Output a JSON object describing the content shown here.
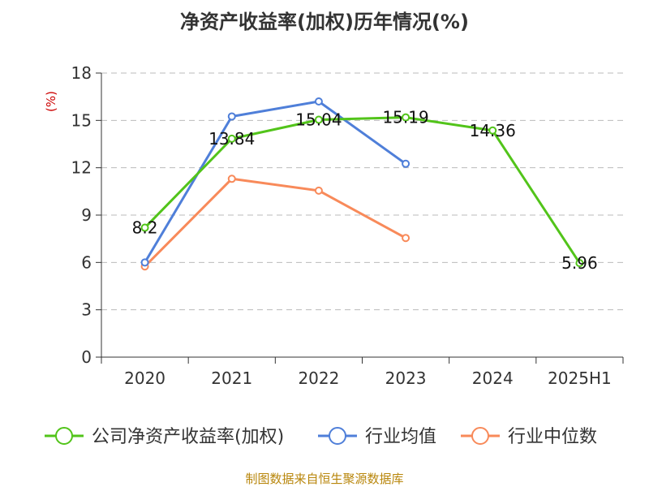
{
  "chart_data": {
    "type": "line",
    "title": "净资产收益率(加权)历年情况(%)",
    "ylabel": "(%)",
    "xlabel": "",
    "ylim": [
      0,
      18
    ],
    "yticks": [
      0,
      3,
      6,
      9,
      12,
      15,
      18
    ],
    "categories": [
      "2020",
      "2021",
      "2022",
      "2023",
      "2024",
      "2025H1"
    ],
    "grid": true,
    "legend_position": "bottom",
    "series": [
      {
        "name": "公司净资产收益率(加权)",
        "color": "#52c41a",
        "values": [
          8.2,
          13.84,
          15.04,
          15.19,
          14.36,
          5.96
        ],
        "labels": [
          "8.2",
          "13.84",
          "15.04",
          "15.19",
          "14.36",
          "5.96"
        ]
      },
      {
        "name": "行业均值",
        "color": "#4f7fd9",
        "values": [
          6.0,
          15.25,
          16.2,
          12.25,
          null,
          null
        ]
      },
      {
        "name": "行业中位数",
        "color": "#f88a5a",
        "values": [
          5.75,
          11.3,
          10.55,
          7.55,
          null,
          null
        ]
      }
    ]
  },
  "source": "制图数据来自恒生聚源数据库"
}
